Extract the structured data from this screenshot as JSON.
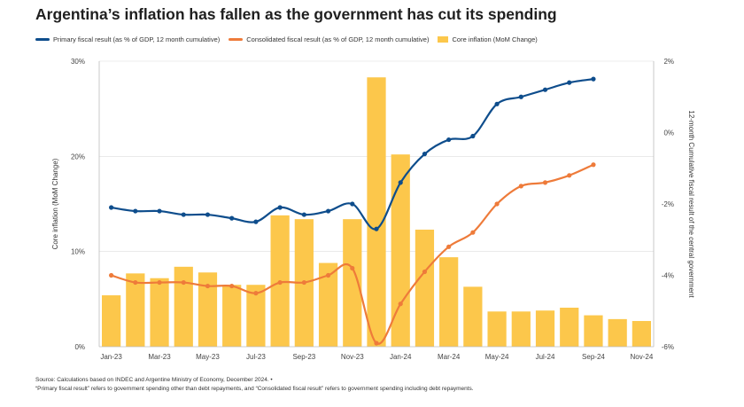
{
  "title": "Argentina’s inflation has fallen as the government has cut its spending",
  "legend": {
    "primary": "Primary fiscal result (as % of GDP, 12 month cumulative)",
    "consolidated": "Consolidated fiscal result (as % of GDP, 12 month cumulative)",
    "core": "Core inflation (MoM Change)"
  },
  "footer": {
    "source": "Source: Calculations based on INDEC and Argentine Ministry of Economy, December 2024. •",
    "note": "“Primary fiscal result” refers to government spending other than debt repayments, and “Consolidated fiscal result” refers to government spending including debt repayments."
  },
  "colors": {
    "primary": "#0e4d8c",
    "consolidated": "#ee7b3a",
    "bars": "#fcc74b",
    "axis": "#bbbbbb",
    "grid": "#dddddd"
  },
  "chart_data": {
    "type": "bar+line",
    "months": [
      "Jan-23",
      "Feb-23",
      "Mar-23",
      "Apr-23",
      "May-23",
      "Jun-23",
      "Jul-23",
      "Aug-23",
      "Sep-23",
      "Oct-23",
      "Nov-23",
      "Dec-23",
      "Jan-24",
      "Feb-24",
      "Mar-24",
      "Apr-24",
      "May-24",
      "Jun-24",
      "Jul-24",
      "Aug-24",
      "Sep-24",
      "Oct-24",
      "Nov-24"
    ],
    "x_tick_labels": [
      "Jan-23",
      "Mar-23",
      "May-23",
      "Jul-23",
      "Sep-23",
      "Nov-23",
      "Jan-24",
      "Mar-24",
      "May-24",
      "Jul-24",
      "Sep-24",
      "Nov-24"
    ],
    "left_axis": {
      "label": "Core inflation (MoM Change)",
      "ticks": [
        "0%",
        "10%",
        "20%",
        "30%"
      ],
      "ylim": [
        0,
        30
      ]
    },
    "right_axis": {
      "label": "12-month Cumulative fiscal result of the central government",
      "ticks": [
        "-6%",
        "-4%",
        "-2%",
        "0%",
        "2%"
      ],
      "ylim": [
        -6,
        2
      ]
    },
    "bars": {
      "name": "Core inflation (MoM Change)",
      "values": [
        5.4,
        7.7,
        7.2,
        8.4,
        7.8,
        6.5,
        6.5,
        13.8,
        13.4,
        8.8,
        13.4,
        28.3,
        20.2,
        12.3,
        9.4,
        6.3,
        3.7,
        3.7,
        3.8,
        4.1,
        3.3,
        2.9,
        2.7
      ]
    },
    "series": [
      {
        "name": "Primary fiscal result (as % of GDP, 12 month cumulative)",
        "axis": "right",
        "values": [
          -2.1,
          -2.2,
          -2.2,
          -2.3,
          -2.3,
          -2.4,
          -2.5,
          -2.1,
          -2.3,
          -2.2,
          -2.0,
          -2.7,
          -1.4,
          -0.6,
          -0.2,
          -0.1,
          0.8,
          1.0,
          1.2,
          1.4,
          1.5,
          null,
          null
        ]
      },
      {
        "name": "Consolidated fiscal result (as % of GDP, 12 month cumulative)",
        "axis": "right",
        "values": [
          -4.0,
          -4.2,
          -4.2,
          -4.2,
          -4.3,
          -4.3,
          -4.5,
          -4.2,
          -4.2,
          -4.0,
          -3.8,
          -5.9,
          -4.8,
          -3.9,
          -3.2,
          -2.8,
          -2.0,
          -1.5,
          -1.4,
          -1.2,
          -0.9,
          null,
          null
        ]
      }
    ]
  }
}
